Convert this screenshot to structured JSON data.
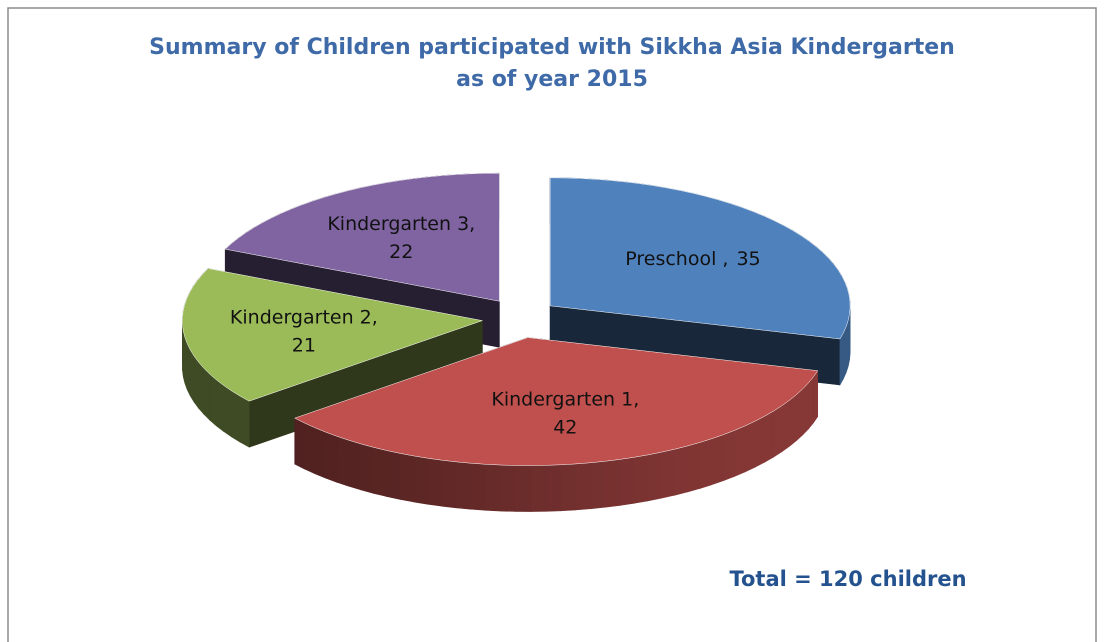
{
  "chart_data": {
    "type": "pie",
    "title": "Summary of Children participated with Sikkha Asia Kindergarten",
    "subtitle": "as of year 2015",
    "categories": [
      "Preschool ,",
      "Kindergarten 1,",
      "Kindergarten 2,",
      "Kindergarten 3,"
    ],
    "values": [
      35,
      42,
      21,
      22
    ],
    "colors": [
      "#4f81bd",
      "#c0504d",
      "#9bbb59",
      "#8064a2"
    ],
    "annotation": "Total = 120 children"
  }
}
